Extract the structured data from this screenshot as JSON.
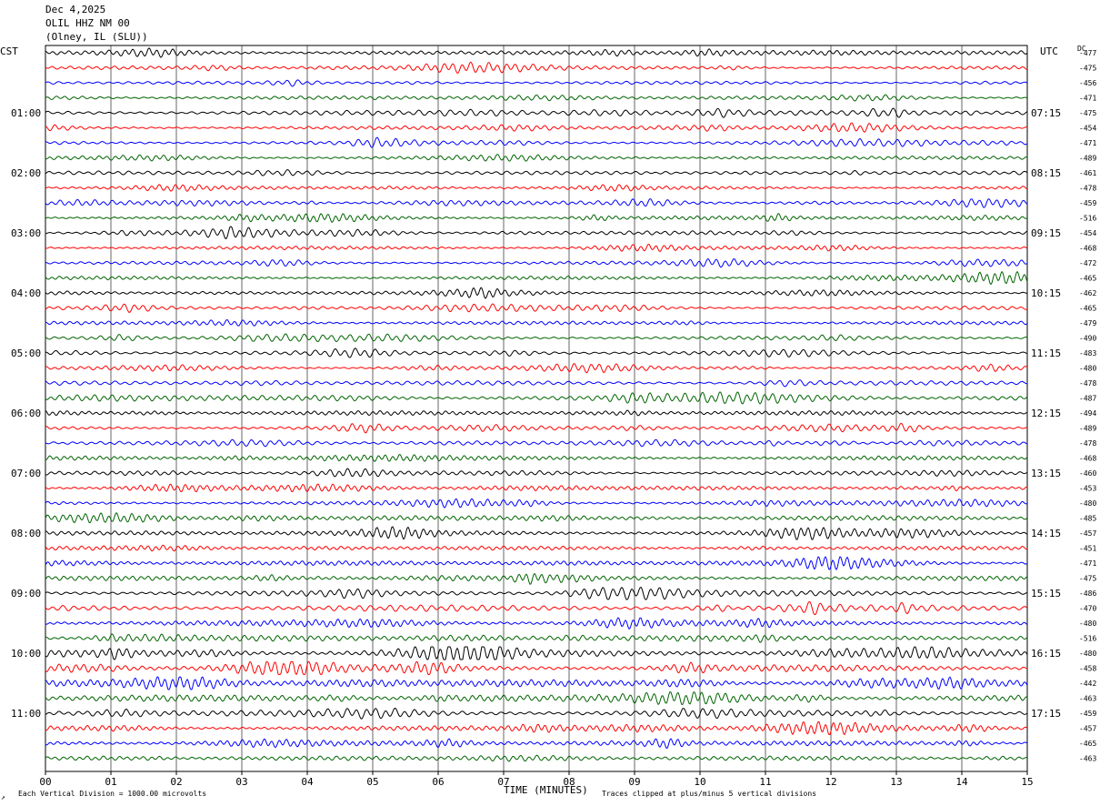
{
  "header": {
    "date": "Dec 4,2025",
    "station": "OLIL HHZ NM 00",
    "location": "(Olney, IL (SLU))"
  },
  "labels": {
    "left_zone": "CST",
    "right_zone": "UTC",
    "dc_label": "DC"
  },
  "footer": {
    "scale_note": "Each Vertical Division = 1000.00 microvolts",
    "clip_note": "Traces clipped at plus/minus 5 vertical divisions",
    "corner_mark": "↗"
  },
  "chart_data": {
    "type": "line",
    "title": "",
    "xlabel": "TIME (MINUTES)",
    "x_ticks": [
      "00",
      "01",
      "02",
      "03",
      "04",
      "05",
      "06",
      "07",
      "08",
      "09",
      "10",
      "11",
      "12",
      "13",
      "14",
      "15"
    ],
    "xlim": [
      0,
      15
    ],
    "grid": true,
    "trace_colors": [
      "#000000",
      "#ff0000",
      "#0000ff",
      "#006400"
    ],
    "left_hour_labels": [
      "01:00",
      "02:00",
      "03:00",
      "04:00",
      "05:00",
      "06:00",
      "07:00",
      "08:00",
      "09:00",
      "10:00",
      "11:00"
    ],
    "right_hour_labels": [
      "07:15",
      "08:15",
      "09:15",
      "10:15",
      "11:15",
      "12:15",
      "13:15",
      "14:15",
      "15:15",
      "16:15",
      "17:15"
    ],
    "dc_offsets": [
      "-477",
      "-475",
      "-456",
      "-471",
      "-475",
      "-454",
      "-471",
      "-489",
      "-461",
      "-478",
      "-459",
      "-516",
      "-454",
      "-468",
      "-472",
      "-465",
      "-462",
      "-465",
      "-479",
      "-490",
      "-483",
      "-480",
      "-478",
      "-487",
      "-494",
      "-489",
      "-478",
      "-468",
      "-460",
      "-453",
      "-480",
      "-485",
      "-457",
      "-451",
      "-471",
      "-475",
      "-486",
      "-470",
      "-480",
      "-516",
      "-480",
      "-458",
      "-442",
      "-463",
      "-459",
      "-457",
      "-465",
      "-463"
    ],
    "trace_activity": [
      1.0,
      0.9,
      0.8,
      0.9,
      1.2,
      0.9,
      1.0,
      0.9,
      0.9,
      0.9,
      0.9,
      1.0,
      1.0,
      0.9,
      0.9,
      0.9,
      0.8,
      0.9,
      0.9,
      1.0,
      1.0,
      0.9,
      1.1,
      1.3,
      1.1,
      1.0,
      1.0,
      1.1,
      1.0,
      1.0,
      1.0,
      1.2,
      1.3,
      1.0,
      1.2,
      1.2,
      1.4,
      1.6,
      1.5,
      1.5,
      1.8,
      1.7,
      1.7,
      1.7,
      1.6,
      1.2,
      1.2,
      1.1
    ]
  }
}
